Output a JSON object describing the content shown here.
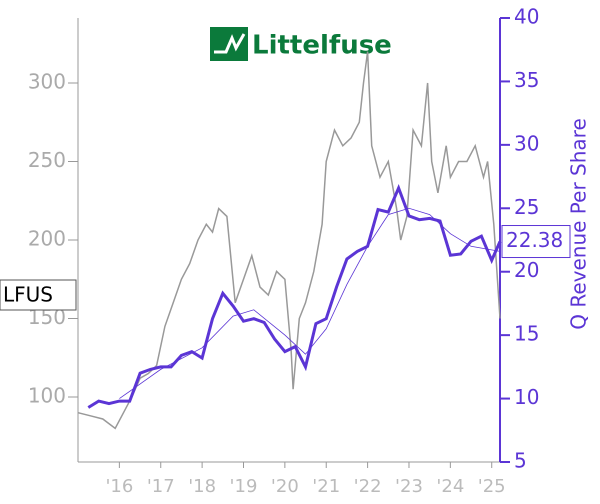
{
  "logo": "Littelfuse",
  "chart_data": {
    "type": "line",
    "y2label": "Q Revenue Per Share",
    "xlim": [
      2015,
      2025.2
    ],
    "xticks": [
      {
        "value": 2016,
        "label": "'16"
      },
      {
        "value": 2017,
        "label": "'17"
      },
      {
        "value": 2018,
        "label": "'18"
      },
      {
        "value": 2019,
        "label": "'19"
      },
      {
        "value": 2020,
        "label": "'20"
      },
      {
        "value": 2021,
        "label": "'21"
      },
      {
        "value": 2022,
        "label": "'22"
      },
      {
        "value": 2023,
        "label": "'23"
      },
      {
        "value": 2024,
        "label": "'24"
      },
      {
        "value": 2025,
        "label": "'25"
      }
    ],
    "ylim": [
      58.6,
      341.4
    ],
    "yticks": [
      100,
      150,
      200,
      250,
      300
    ],
    "y2lim": [
      5,
      40
    ],
    "y2ticks": [
      5,
      10,
      15,
      20,
      25,
      30,
      35,
      40
    ],
    "series": [
      {
        "name": "LFUS",
        "color": "#999999",
        "x": [
          2015.0,
          2015.3,
          2015.6,
          2015.9,
          2016.1,
          2016.3,
          2016.5,
          2016.7,
          2016.9,
          2017.1,
          2017.3,
          2017.5,
          2017.7,
          2017.9,
          2018.1,
          2018.25,
          2018.4,
          2018.6,
          2018.8,
          2019.0,
          2019.2,
          2019.4,
          2019.6,
          2019.8,
          2020.0,
          2020.15,
          2020.2,
          2020.35,
          2020.5,
          2020.7,
          2020.9,
          2021.0,
          2021.2,
          2021.4,
          2021.6,
          2021.8,
          2021.9,
          2022.0,
          2022.1,
          2022.3,
          2022.5,
          2022.7,
          2022.8,
          2022.95,
          2023.1,
          2023.3,
          2023.45,
          2023.55,
          2023.7,
          2023.9,
          2024.0,
          2024.2,
          2024.4,
          2024.6,
          2024.8,
          2024.9,
          2025.05,
          2025.2
        ],
        "values": [
          90,
          88,
          86,
          80,
          90,
          100,
          112,
          115,
          120,
          145,
          160,
          175,
          185,
          200,
          210,
          205,
          220,
          215,
          160,
          175,
          190,
          170,
          165,
          180,
          175,
          130,
          105,
          150,
          160,
          180,
          210,
          250,
          270,
          260,
          265,
          275,
          300,
          320,
          260,
          240,
          250,
          220,
          200,
          215,
          270,
          260,
          300,
          250,
          230,
          260,
          240,
          250,
          250,
          260,
          240,
          250,
          210,
          150
        ]
      },
      {
        "axis": "y2",
        "color": "#5b35d5",
        "x": [
          2015.25,
          2015.5,
          2015.75,
          2016.0,
          2016.25,
          2016.5,
          2016.75,
          2017.0,
          2017.25,
          2017.5,
          2017.75,
          2018.0,
          2018.25,
          2018.5,
          2018.75,
          2019.0,
          2019.25,
          2019.5,
          2019.75,
          2020.0,
          2020.25,
          2020.5,
          2020.75,
          2021.0,
          2021.25,
          2021.5,
          2021.75,
          2022.0,
          2022.25,
          2022.5,
          2022.75,
          2023.0,
          2023.25,
          2023.5,
          2023.75,
          2024.0,
          2024.25,
          2024.5,
          2024.75,
          2025.0,
          2025.2
        ],
        "values": [
          9.3,
          9.8,
          9.6,
          9.8,
          9.8,
          12,
          12.3,
          12.5,
          12.5,
          13.4,
          13.7,
          13.2,
          16.3,
          18.3,
          17.3,
          16.1,
          16.3,
          16,
          14.7,
          13.7,
          14.1,
          12.5,
          15.9,
          16.3,
          18.8,
          21,
          21.6,
          22,
          24.9,
          24.7,
          26.6,
          24.4,
          24.1,
          24.2,
          24,
          21.3,
          21.4,
          22.4,
          22.8,
          20.9,
          22.38
        ]
      },
      {
        "axis": "y2",
        "color": "#5b35d5",
        "x": [
          2016.0,
          2017.0,
          2018.0,
          2018.75,
          2019.25,
          2020.0,
          2020.5,
          2021.0,
          2021.5,
          2022.0,
          2022.5,
          2023.0,
          2023.5,
          2024.0,
          2024.5,
          2025.2
        ],
        "values": [
          10,
          12.3,
          14,
          16.5,
          17,
          15,
          13.5,
          15.5,
          19,
          22,
          24.5,
          25,
          24.5,
          23,
          22,
          21.6
        ]
      }
    ]
  }
}
